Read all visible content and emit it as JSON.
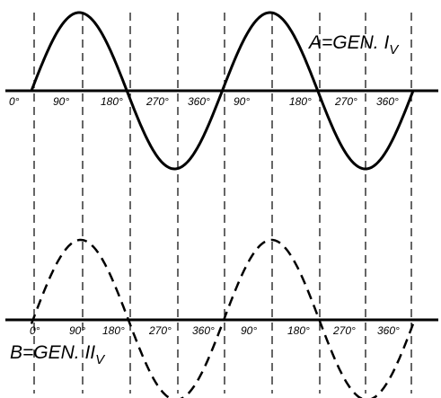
{
  "top_wave": {
    "label": "A=GEN. I",
    "label_subscript": "V",
    "line_style": "solid",
    "tick_labels": [
      "0°",
      "90°",
      "180°",
      "270°",
      "360°",
      "90°",
      "180°",
      "270°",
      "360°"
    ]
  },
  "bottom_wave": {
    "label": "B=GEN. II",
    "label_subscript": "V",
    "line_style": "dashed",
    "tick_labels": [
      "0°",
      "90°",
      "180°",
      "270°",
      "360°",
      "90°",
      "180°",
      "270°",
      "360°"
    ]
  },
  "colors": {
    "ink": "#000000",
    "background": "#ffffff"
  }
}
